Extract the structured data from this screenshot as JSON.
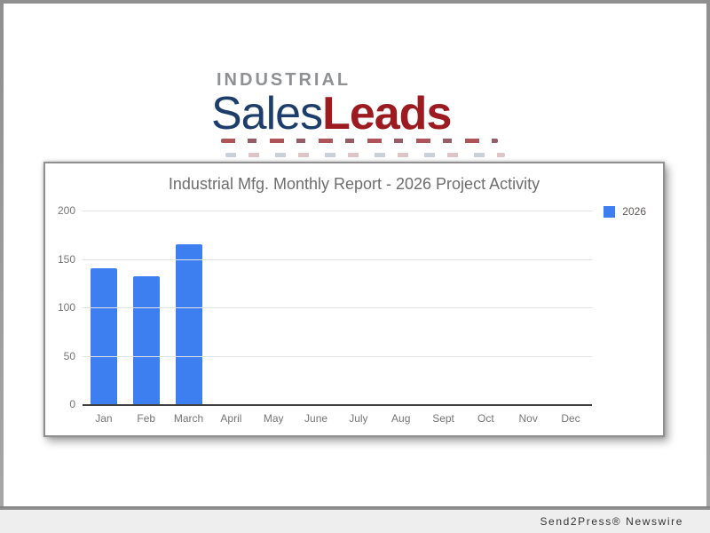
{
  "window": {
    "footer_credit": "Send2Press® Newswire"
  },
  "logo": {
    "line1": "INDUSTRIAL",
    "word1": "Sales",
    "word2": "Leads",
    "line1_color": "#8e9093",
    "word1_color": "#1d3d6b",
    "word2_color": "#9c1b20"
  },
  "chart_data": {
    "type": "bar",
    "title": "Industrial Mfg. Monthly Report - 2026 Project Activity",
    "categories": [
      "Jan",
      "Feb",
      "March",
      "April",
      "May",
      "June",
      "July",
      "Aug",
      "Sept",
      "Oct",
      "Nov",
      "Dec"
    ],
    "series": [
      {
        "name": "2026",
        "color": "#3d7ef0",
        "values": [
          140,
          132,
          165,
          0,
          0,
          0,
          0,
          0,
          0,
          0,
          0,
          0
        ]
      }
    ],
    "xlabel": "",
    "ylabel": "",
    "ylim": [
      0,
      200
    ],
    "yticks": [
      0,
      50,
      100,
      150,
      200
    ],
    "grid": true,
    "legend_position": "right",
    "title_color": "#6d6d6d",
    "axis_text_color": "#757575"
  }
}
